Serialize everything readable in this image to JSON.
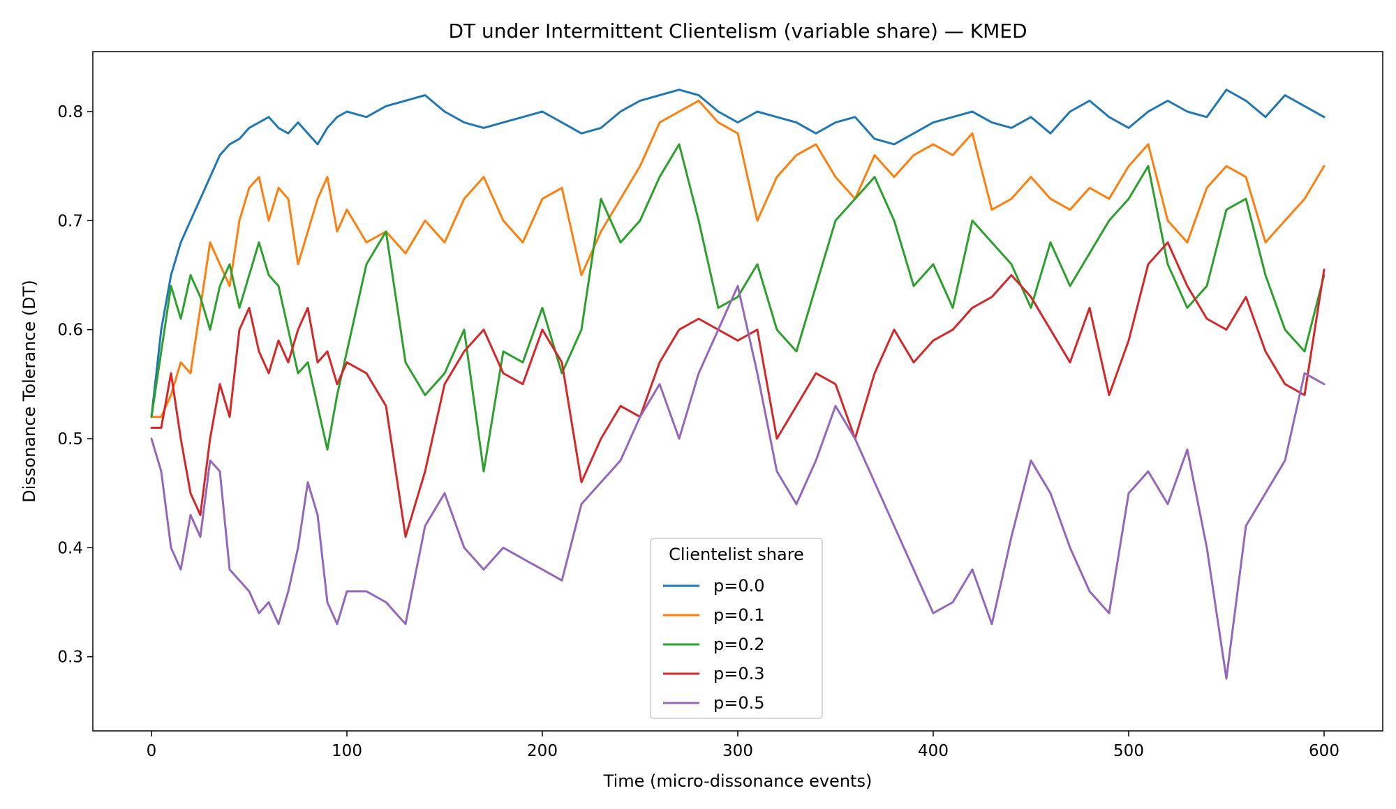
{
  "chart_data": {
    "type": "line",
    "title": "DT under Intermittent Clientelism (variable share) — KMED",
    "xlabel": "Time (micro-dissonance events)",
    "ylabel": "Dissonance Tolerance (DT)",
    "xlim": [
      -30,
      630
    ],
    "ylim": [
      0.232,
      0.855
    ],
    "x_ticks": [
      0,
      100,
      200,
      300,
      400,
      500,
      600
    ],
    "y_ticks": [
      0.3,
      0.4,
      0.5,
      0.6,
      0.7,
      0.8
    ],
    "grid": false,
    "legend": {
      "title": "Clientelist share",
      "placement": "lower-center"
    },
    "series": [
      {
        "name": "p=0.0",
        "color": "#1f77b4",
        "x": [
          0,
          5,
          10,
          15,
          20,
          25,
          30,
          35,
          40,
          45,
          50,
          55,
          60,
          65,
          70,
          75,
          80,
          85,
          90,
          95,
          100,
          110,
          120,
          130,
          140,
          150,
          160,
          170,
          180,
          190,
          200,
          210,
          220,
          230,
          240,
          250,
          260,
          270,
          280,
          290,
          300,
          310,
          320,
          330,
          340,
          350,
          360,
          370,
          380,
          390,
          400,
          410,
          420,
          430,
          440,
          450,
          460,
          470,
          480,
          490,
          500,
          510,
          520,
          530,
          540,
          550,
          560,
          570,
          580,
          590,
          600
        ],
        "y": [
          0.52,
          0.6,
          0.65,
          0.68,
          0.7,
          0.72,
          0.74,
          0.76,
          0.77,
          0.775,
          0.785,
          0.79,
          0.795,
          0.785,
          0.78,
          0.79,
          0.78,
          0.77,
          0.785,
          0.795,
          0.8,
          0.795,
          0.805,
          0.81,
          0.815,
          0.8,
          0.79,
          0.785,
          0.79,
          0.795,
          0.8,
          0.79,
          0.78,
          0.785,
          0.8,
          0.81,
          0.815,
          0.82,
          0.815,
          0.8,
          0.79,
          0.8,
          0.795,
          0.79,
          0.78,
          0.79,
          0.795,
          0.775,
          0.77,
          0.78,
          0.79,
          0.795,
          0.8,
          0.79,
          0.785,
          0.795,
          0.78,
          0.8,
          0.81,
          0.795,
          0.785,
          0.8,
          0.81,
          0.8,
          0.795,
          0.82,
          0.81,
          0.795,
          0.815,
          0.805,
          0.795
        ]
      },
      {
        "name": "p=0.1",
        "color": "#ff7f0e",
        "x": [
          0,
          5,
          10,
          15,
          20,
          25,
          30,
          35,
          40,
          45,
          50,
          55,
          60,
          65,
          70,
          75,
          80,
          85,
          90,
          95,
          100,
          110,
          120,
          130,
          140,
          150,
          160,
          170,
          180,
          190,
          200,
          210,
          220,
          230,
          240,
          250,
          260,
          270,
          280,
          290,
          300,
          310,
          320,
          330,
          340,
          350,
          360,
          370,
          380,
          390,
          400,
          410,
          420,
          430,
          440,
          450,
          460,
          470,
          480,
          490,
          500,
          510,
          520,
          530,
          540,
          550,
          560,
          570,
          580,
          590,
          600
        ],
        "y": [
          0.52,
          0.52,
          0.54,
          0.57,
          0.56,
          0.62,
          0.68,
          0.66,
          0.64,
          0.7,
          0.73,
          0.74,
          0.7,
          0.73,
          0.72,
          0.66,
          0.69,
          0.72,
          0.74,
          0.69,
          0.71,
          0.68,
          0.69,
          0.67,
          0.7,
          0.68,
          0.72,
          0.74,
          0.7,
          0.68,
          0.72,
          0.73,
          0.65,
          0.69,
          0.72,
          0.75,
          0.79,
          0.8,
          0.81,
          0.79,
          0.78,
          0.7,
          0.74,
          0.76,
          0.77,
          0.74,
          0.72,
          0.76,
          0.74,
          0.76,
          0.77,
          0.76,
          0.78,
          0.71,
          0.72,
          0.74,
          0.72,
          0.71,
          0.73,
          0.72,
          0.75,
          0.77,
          0.7,
          0.68,
          0.73,
          0.75,
          0.74,
          0.68,
          0.7,
          0.72,
          0.75
        ]
      },
      {
        "name": "p=0.2",
        "color": "#2ca02c",
        "x": [
          0,
          5,
          10,
          15,
          20,
          25,
          30,
          35,
          40,
          45,
          50,
          55,
          60,
          65,
          70,
          75,
          80,
          85,
          90,
          95,
          100,
          110,
          120,
          130,
          140,
          150,
          160,
          170,
          180,
          190,
          200,
          210,
          220,
          230,
          240,
          250,
          260,
          270,
          280,
          290,
          300,
          310,
          320,
          330,
          340,
          350,
          360,
          370,
          380,
          390,
          400,
          410,
          420,
          430,
          440,
          450,
          460,
          470,
          480,
          490,
          500,
          510,
          520,
          530,
          540,
          550,
          560,
          570,
          580,
          590,
          600
        ],
        "y": [
          0.52,
          0.58,
          0.64,
          0.61,
          0.65,
          0.63,
          0.6,
          0.64,
          0.66,
          0.62,
          0.65,
          0.68,
          0.65,
          0.64,
          0.6,
          0.56,
          0.57,
          0.53,
          0.49,
          0.54,
          0.58,
          0.66,
          0.69,
          0.57,
          0.54,
          0.56,
          0.6,
          0.47,
          0.58,
          0.57,
          0.62,
          0.56,
          0.6,
          0.72,
          0.68,
          0.7,
          0.74,
          0.77,
          0.7,
          0.62,
          0.63,
          0.66,
          0.6,
          0.58,
          0.64,
          0.7,
          0.72,
          0.74,
          0.7,
          0.64,
          0.66,
          0.62,
          0.7,
          0.68,
          0.66,
          0.62,
          0.68,
          0.64,
          0.67,
          0.7,
          0.72,
          0.75,
          0.66,
          0.62,
          0.64,
          0.71,
          0.72,
          0.65,
          0.6,
          0.58,
          0.65
        ]
      },
      {
        "name": "p=0.3",
        "color": "#d62728",
        "x": [
          0,
          5,
          10,
          15,
          20,
          25,
          30,
          35,
          40,
          45,
          50,
          55,
          60,
          65,
          70,
          75,
          80,
          85,
          90,
          95,
          100,
          110,
          120,
          130,
          140,
          150,
          160,
          170,
          180,
          190,
          200,
          210,
          220,
          230,
          240,
          250,
          260,
          270,
          280,
          290,
          300,
          310,
          320,
          330,
          340,
          350,
          360,
          370,
          380,
          390,
          400,
          410,
          420,
          430,
          440,
          450,
          460,
          470,
          480,
          490,
          500,
          510,
          520,
          530,
          540,
          550,
          560,
          570,
          580,
          590,
          600
        ],
        "y": [
          0.51,
          0.51,
          0.56,
          0.5,
          0.45,
          0.43,
          0.5,
          0.55,
          0.52,
          0.6,
          0.62,
          0.58,
          0.56,
          0.59,
          0.57,
          0.6,
          0.62,
          0.57,
          0.58,
          0.55,
          0.57,
          0.56,
          0.53,
          0.41,
          0.47,
          0.55,
          0.58,
          0.6,
          0.56,
          0.55,
          0.6,
          0.57,
          0.46,
          0.5,
          0.53,
          0.52,
          0.57,
          0.6,
          0.61,
          0.6,
          0.59,
          0.6,
          0.5,
          0.53,
          0.56,
          0.55,
          0.5,
          0.56,
          0.6,
          0.57,
          0.59,
          0.6,
          0.62,
          0.63,
          0.65,
          0.63,
          0.6,
          0.57,
          0.62,
          0.54,
          0.59,
          0.66,
          0.68,
          0.64,
          0.61,
          0.6,
          0.63,
          0.58,
          0.55,
          0.54,
          0.655
        ]
      },
      {
        "name": "p=0.5",
        "color": "#9467bd",
        "x": [
          0,
          5,
          10,
          15,
          20,
          25,
          30,
          35,
          40,
          45,
          50,
          55,
          60,
          65,
          70,
          75,
          80,
          85,
          90,
          95,
          100,
          110,
          120,
          130,
          140,
          150,
          160,
          170,
          180,
          190,
          200,
          210,
          220,
          230,
          240,
          250,
          260,
          270,
          280,
          290,
          300,
          310,
          320,
          330,
          340,
          350,
          360,
          370,
          380,
          390,
          400,
          410,
          420,
          430,
          440,
          450,
          460,
          470,
          480,
          490,
          500,
          510,
          520,
          530,
          540,
          550,
          560,
          570,
          580,
          590,
          600
        ],
        "y": [
          0.5,
          0.47,
          0.4,
          0.38,
          0.43,
          0.41,
          0.48,
          0.47,
          0.38,
          0.37,
          0.36,
          0.34,
          0.35,
          0.33,
          0.36,
          0.4,
          0.46,
          0.43,
          0.35,
          0.33,
          0.36,
          0.36,
          0.35,
          0.33,
          0.42,
          0.45,
          0.4,
          0.38,
          0.4,
          0.39,
          0.38,
          0.37,
          0.44,
          0.46,
          0.48,
          0.52,
          0.55,
          0.5,
          0.56,
          0.6,
          0.64,
          0.56,
          0.47,
          0.44,
          0.48,
          0.53,
          0.5,
          0.46,
          0.42,
          0.38,
          0.34,
          0.35,
          0.38,
          0.33,
          0.41,
          0.48,
          0.45,
          0.4,
          0.36,
          0.34,
          0.45,
          0.47,
          0.44,
          0.49,
          0.4,
          0.28,
          0.42,
          0.45,
          0.48,
          0.56,
          0.55
        ]
      }
    ]
  }
}
